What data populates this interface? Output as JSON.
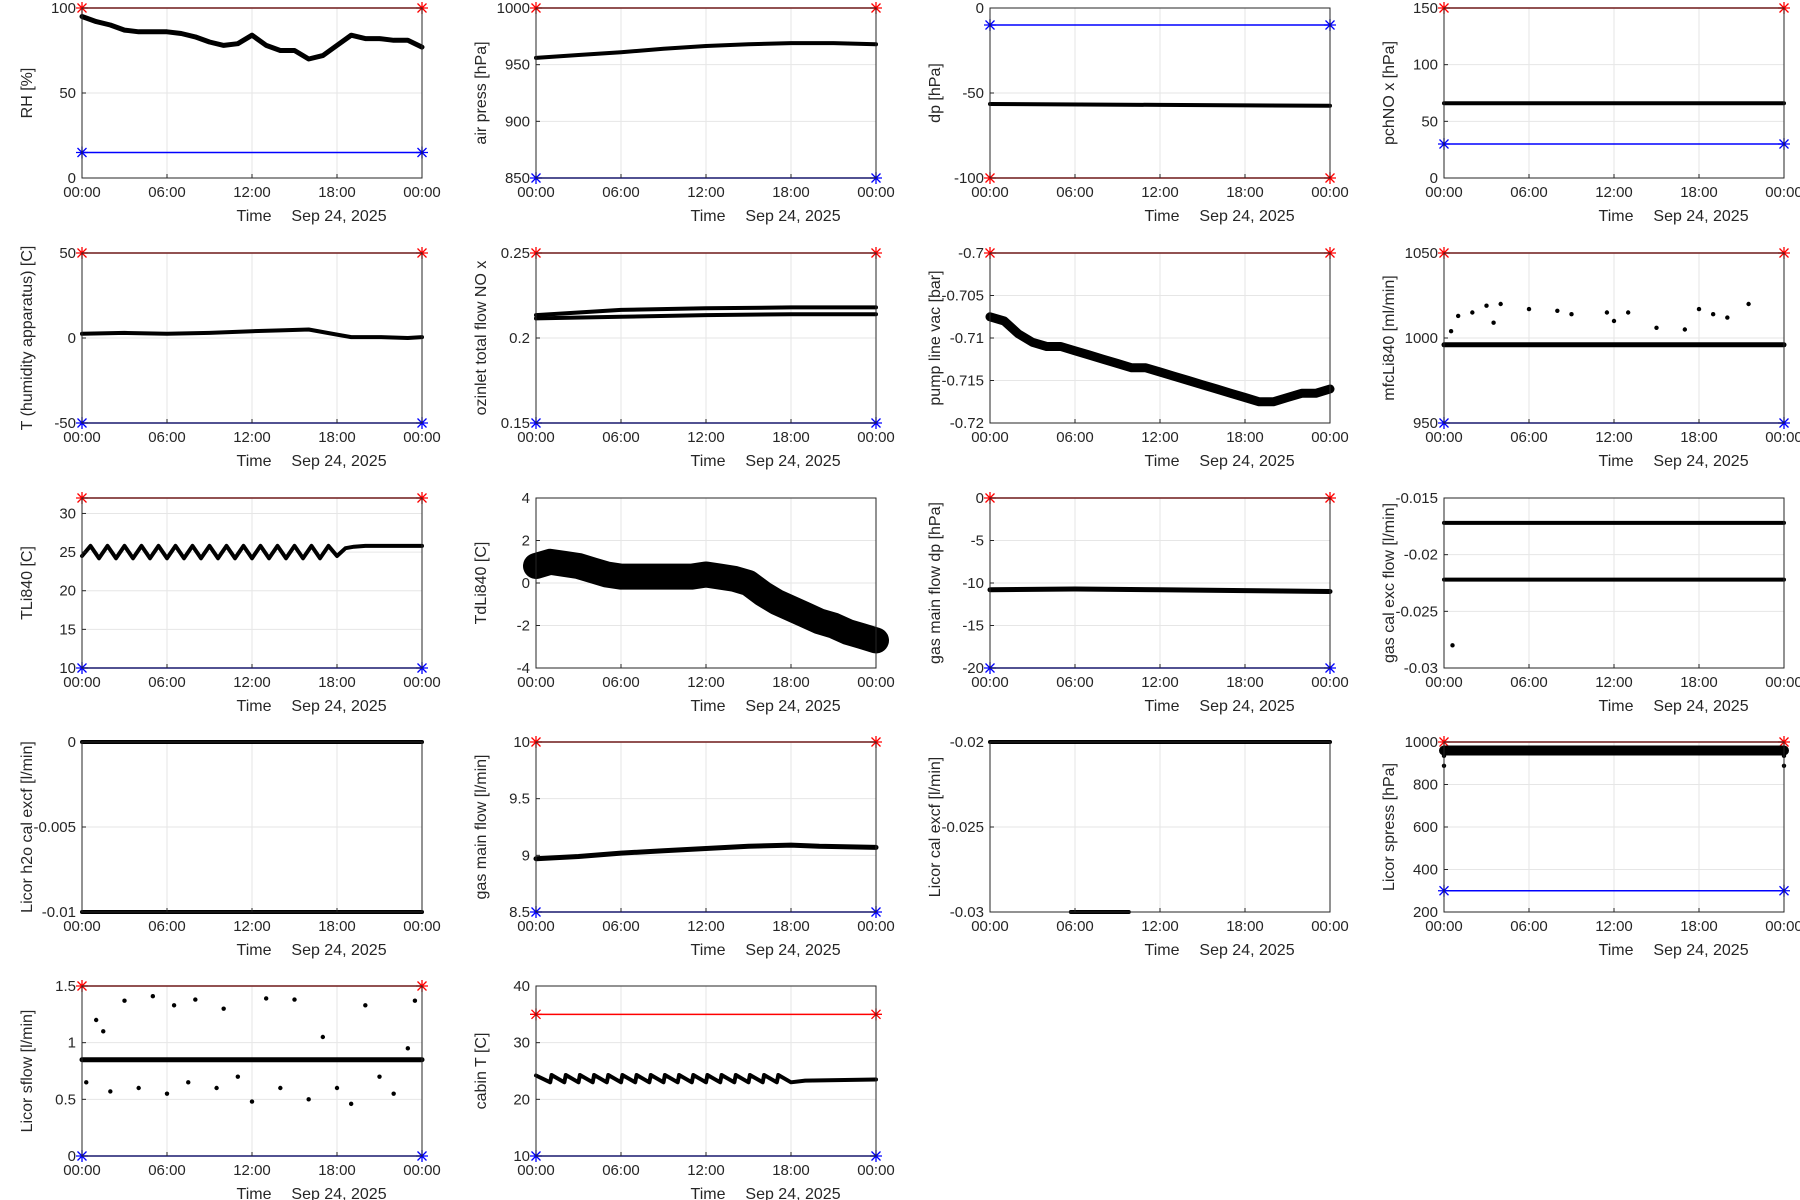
{
  "figure": {
    "x_title": "Time",
    "date_label": "Sep 24, 2025"
  },
  "colors": {
    "upper_limit": "#ff0000",
    "lower_limit": "#0000ff",
    "data": "#000000",
    "grid": "#e6e6e6",
    "axes": "#262626"
  },
  "chart_data": [
    {
      "type": "scatter",
      "ylabel": "RH [%]",
      "ylim": [
        0,
        100
      ],
      "yticks": [
        "0",
        "50",
        "100"
      ],
      "xticks": [
        "00:00",
        "06:00",
        "12:00",
        "18:00",
        "00:00"
      ],
      "upper_limit": 100,
      "lower_limit": 15,
      "series": [
        {
          "x": [
            0,
            1,
            2,
            3,
            4,
            5,
            6,
            7,
            8,
            9,
            10,
            11,
            12,
            13,
            14,
            15,
            16,
            17,
            18,
            19,
            20,
            21,
            22,
            23,
            24
          ],
          "y": [
            95,
            92,
            90,
            87,
            86,
            86,
            86,
            85,
            83,
            80,
            78,
            79,
            84,
            78,
            75,
            75,
            70,
            72,
            78,
            84,
            82,
            82,
            81,
            81,
            77
          ]
        }
      ]
    },
    {
      "type": "line",
      "ylabel": "air press [hPa]",
      "ylim": [
        850,
        1000
      ],
      "yticks": [
        "850",
        "900",
        "950",
        "1000"
      ],
      "xticks": [
        "00:00",
        "06:00",
        "12:00",
        "18:00",
        "00:00"
      ],
      "upper_limit": 1000,
      "lower_limit": 850,
      "series": [
        {
          "x": [
            0,
            3,
            6,
            9,
            12,
            15,
            18,
            21,
            24
          ],
          "y": [
            956,
            958.5,
            961,
            964,
            966.5,
            968,
            969,
            969,
            968
          ]
        }
      ]
    },
    {
      "type": "line",
      "ylabel": "dp [hPa]",
      "ylim": [
        -100,
        0
      ],
      "yticks": [
        "-100",
        "-50",
        "0"
      ],
      "xticks": [
        "00:00",
        "06:00",
        "12:00",
        "18:00",
        "00:00"
      ],
      "upper_limit": -100,
      "lower_limit": -10,
      "series": [
        {
          "x": [
            0,
            12,
            24
          ],
          "y": [
            -56.5,
            -57,
            -57.5
          ]
        }
      ]
    },
    {
      "type": "line",
      "ylabel": "pchNO x [hPa]",
      "ylim": [
        0,
        150
      ],
      "yticks": [
        "0",
        "50",
        "100",
        "150"
      ],
      "xticks": [
        "00:00",
        "06:00",
        "12:00",
        "18:00",
        "00:00"
      ],
      "upper_limit": 150,
      "lower_limit": 30,
      "series": [
        {
          "x": [
            0,
            12,
            24
          ],
          "y": [
            66,
            66,
            66
          ]
        }
      ]
    },
    {
      "type": "line",
      "ylabel": "T (humidity apparatus) [C]",
      "ylim": [
        -50,
        50
      ],
      "yticks": [
        "-50",
        "0",
        "50"
      ],
      "xticks": [
        "00:00",
        "06:00",
        "12:00",
        "18:00",
        "00:00"
      ],
      "upper_limit": 50,
      "lower_limit": -50,
      "series": [
        {
          "x": [
            0,
            3,
            6,
            9,
            12,
            14,
            16,
            18,
            19,
            21,
            23,
            24
          ],
          "y": [
            2.5,
            3,
            2.5,
            3,
            4,
            4.5,
            5,
            2,
            0.5,
            0.5,
            0,
            0.5
          ]
        }
      ]
    },
    {
      "type": "line",
      "ylabel": "ozinlet total flow NO x",
      "ylim": [
        0.15,
        0.25
      ],
      "yticks": [
        "0.15",
        "0.2",
        "0.25"
      ],
      "xticks": [
        "00:00",
        "06:00",
        "12:00",
        "18:00",
        "00:00"
      ],
      "upper_limit": 0.25,
      "lower_limit": 0.15,
      "series": [
        {
          "x": [
            0,
            6,
            12,
            18,
            24
          ],
          "y": [
            0.2135,
            0.2165,
            0.2175,
            0.218,
            0.218
          ]
        },
        {
          "x": [
            0,
            6,
            12,
            18,
            24
          ],
          "y": [
            0.2115,
            0.2125,
            0.2135,
            0.214,
            0.214
          ]
        }
      ]
    },
    {
      "type": "scatter",
      "ylabel": "pump line vac [bar]",
      "ylim": [
        -0.72,
        -0.7
      ],
      "yticks": [
        "-0.72",
        "-0.715",
        "-0.71",
        "-0.705",
        "-0.7"
      ],
      "xticks": [
        "00:00",
        "06:00",
        "12:00",
        "18:00",
        "00:00"
      ],
      "upper_limit": -0.7,
      "lower_limit": null,
      "series": [
        {
          "x": [
            0,
            1,
            2,
            3,
            4,
            5,
            6,
            7,
            8,
            9,
            10,
            11,
            12,
            13,
            14,
            15,
            16,
            17,
            18,
            19,
            20,
            21,
            22,
            23,
            24
          ],
          "y": [
            -0.7075,
            -0.708,
            -0.7095,
            -0.7105,
            -0.711,
            -0.711,
            -0.7115,
            -0.712,
            -0.7125,
            -0.713,
            -0.7135,
            -0.7135,
            -0.714,
            -0.7145,
            -0.715,
            -0.7155,
            -0.716,
            -0.7165,
            -0.717,
            -0.7175,
            -0.7175,
            -0.717,
            -0.7165,
            -0.7165,
            -0.716
          ]
        }
      ]
    },
    {
      "type": "scatter",
      "ylabel": "mfcLi840 [ml/min]",
      "ylim": [
        950,
        1050
      ],
      "yticks": [
        "950",
        "1000",
        "1050"
      ],
      "xticks": [
        "00:00",
        "06:00",
        "12:00",
        "18:00",
        "00:00"
      ],
      "upper_limit": 1050,
      "lower_limit": 950,
      "series": [
        {
          "x": [
            0,
            24
          ],
          "y": [
            996,
            996
          ]
        },
        {
          "x": [
            0.5,
            1,
            2,
            3,
            3.5,
            4,
            6,
            8,
            9,
            11.5,
            12,
            13,
            15,
            17,
            18,
            19,
            20,
            21.5
          ],
          "y": [
            1004,
            1013,
            1015,
            1019,
            1009,
            1020,
            1017,
            1016,
            1014,
            1015,
            1010,
            1015,
            1006,
            1005,
            1017,
            1014,
            1012,
            1020
          ]
        }
      ]
    },
    {
      "type": "line",
      "ylabel": "TLi840 [C]",
      "ylim": [
        10,
        32
      ],
      "yticks": [
        "10",
        "15",
        "20",
        "25",
        "30"
      ],
      "xticks": [
        "00:00",
        "06:00",
        "12:00",
        "18:00",
        "00:00"
      ],
      "upper_limit": 32,
      "lower_limit": 10,
      "series": [
        {
          "x": [
            0,
            0.6,
            1.2,
            1.8,
            2.4,
            3,
            3.6,
            4.2,
            4.8,
            5.4,
            6,
            6.6,
            7.2,
            7.8,
            8.4,
            9,
            9.6,
            10.2,
            10.8,
            11.4,
            12,
            12.6,
            13.2,
            13.8,
            14.4,
            15,
            15.6,
            16.2,
            16.8,
            17.4,
            18,
            18.6,
            19.2,
            20,
            22,
            24
          ],
          "y": [
            24.5,
            25.8,
            24.2,
            25.8,
            24.2,
            25.8,
            24.2,
            25.8,
            24.2,
            25.8,
            24.2,
            25.8,
            24.2,
            25.8,
            24.2,
            25.8,
            24.2,
            25.8,
            24.2,
            25.8,
            24.2,
            25.8,
            24.2,
            25.8,
            24.2,
            25.8,
            24.2,
            25.8,
            24.2,
            25.8,
            24.5,
            25.5,
            25.7,
            25.8,
            25.8,
            25.8
          ]
        }
      ]
    },
    {
      "type": "scatter",
      "ylabel": "TdLi840 [C]",
      "ylim": [
        -4,
        4
      ],
      "yticks": [
        "-4",
        "-2",
        "0",
        "2",
        "4"
      ],
      "xticks": [
        "00:00",
        "06:00",
        "12:00",
        "18:00",
        "00:00"
      ],
      "upper_limit": null,
      "lower_limit": null,
      "series": [
        {
          "x": [
            0,
            1,
            2,
            3,
            4,
            5,
            6,
            7,
            8,
            9,
            10,
            11,
            12,
            13,
            14,
            15,
            16,
            17,
            18,
            19,
            20,
            21,
            22,
            23,
            24
          ],
          "y": [
            0.8,
            1.0,
            0.9,
            0.8,
            0.6,
            0.4,
            0.3,
            0.3,
            0.3,
            0.3,
            0.3,
            0.3,
            0.4,
            0.3,
            0.2,
            0.0,
            -0.5,
            -0.9,
            -1.2,
            -1.5,
            -1.8,
            -2.0,
            -2.3,
            -2.5,
            -2.7
          ]
        }
      ]
    },
    {
      "type": "scatter",
      "ylabel": "gas main flow dp [hPa]",
      "ylim": [
        -20,
        0
      ],
      "yticks": [
        "-20",
        "-15",
        "-10",
        "-5",
        "0"
      ],
      "xticks": [
        "00:00",
        "06:00",
        "12:00",
        "18:00",
        "00:00"
      ],
      "upper_limit": 0,
      "lower_limit": -20,
      "series": [
        {
          "x": [
            0,
            6,
            12,
            18,
            24
          ],
          "y": [
            -10.8,
            -10.7,
            -10.8,
            -10.9,
            -11.0
          ]
        }
      ]
    },
    {
      "type": "line",
      "ylabel": "gas cal exc flow [l/min]",
      "ylim": [
        -0.03,
        -0.015
      ],
      "yticks": [
        "-0.03",
        "-0.025",
        "-0.02",
        "-0.015"
      ],
      "xticks": [
        "00:00",
        "06:00",
        "12:00",
        "18:00",
        "00:00"
      ],
      "upper_limit": null,
      "lower_limit": null,
      "series": [
        {
          "x": [
            0,
            24
          ],
          "y": [
            -0.0172,
            -0.0172
          ]
        },
        {
          "x": [
            0,
            24
          ],
          "y": [
            -0.0222,
            -0.0222
          ]
        },
        {
          "x": [
            0.6
          ],
          "y": [
            -0.028
          ]
        }
      ]
    },
    {
      "type": "line",
      "ylabel": "Licor h2o cal excf [l/min]",
      "ylim": [
        -0.01,
        0
      ],
      "yticks": [
        "-0.01",
        "-0.005",
        "0"
      ],
      "xticks": [
        "00:00",
        "06:00",
        "12:00",
        "18:00",
        "00:00"
      ],
      "upper_limit": null,
      "lower_limit": null,
      "series": [
        {
          "x": [
            0,
            24
          ],
          "y": [
            0,
            0
          ]
        },
        {
          "x": [
            0,
            24
          ],
          "y": [
            -0.01,
            -0.01
          ]
        }
      ]
    },
    {
      "type": "scatter",
      "ylabel": "gas main flow [l/min]",
      "ylim": [
        8.5,
        10
      ],
      "yticks": [
        "8.5",
        "9",
        "9.5",
        "10"
      ],
      "xticks": [
        "00:00",
        "06:00",
        "12:00",
        "18:00",
        "00:00"
      ],
      "upper_limit": 10,
      "lower_limit": 8.5,
      "series": [
        {
          "x": [
            0,
            3,
            6,
            9,
            12,
            15,
            18,
            20,
            24
          ],
          "y": [
            8.97,
            8.99,
            9.02,
            9.04,
            9.06,
            9.08,
            9.09,
            9.08,
            9.07
          ]
        }
      ]
    },
    {
      "type": "line",
      "ylabel": "Licor cal excf [l/min]",
      "ylim": [
        -0.03,
        -0.02
      ],
      "yticks": [
        "-0.03",
        "-0.025",
        "-0.02"
      ],
      "xticks": [
        "00:00",
        "06:00",
        "12:00",
        "18:00",
        "00:00"
      ],
      "upper_limit": null,
      "lower_limit": null,
      "series": [
        {
          "x": [
            0,
            24
          ],
          "y": [
            -0.02,
            -0.02
          ]
        },
        {
          "x": [
            5.7,
            9.8
          ],
          "y": [
            -0.03,
            -0.03
          ]
        }
      ]
    },
    {
      "type": "scatter",
      "ylabel": "Licor spress [hPa]",
      "ylim": [
        200,
        1000
      ],
      "yticks": [
        "200",
        "400",
        "600",
        "800",
        "1000"
      ],
      "xticks": [
        "00:00",
        "06:00",
        "12:00",
        "18:00",
        "00:00"
      ],
      "upper_limit": 1000,
      "lower_limit": 300,
      "series": [
        {
          "x": [
            0,
            24
          ],
          "y": [
            960,
            960
          ]
        },
        {
          "x": [
            0,
            24
          ],
          "y": [
            935,
            935
          ]
        },
        {
          "x": [
            0,
            24
          ],
          "y": [
            888,
            888
          ]
        }
      ]
    },
    {
      "type": "scatter",
      "ylabel": "Licor sflow [l/min]",
      "ylim": [
        0,
        1.5
      ],
      "yticks": [
        "0",
        "0.5",
        "1",
        "1.5"
      ],
      "xticks": [
        "00:00",
        "06:00",
        "12:00",
        "18:00",
        "00:00"
      ],
      "upper_limit": 1.5,
      "lower_limit": 0,
      "series": [
        {
          "x": [
            0,
            24
          ],
          "y": [
            0.85,
            0.85
          ]
        },
        {
          "x": [
            0.3,
            1,
            1.5,
            2,
            3,
            4,
            5,
            6,
            6.5,
            7.5,
            8,
            9.5,
            10,
            11,
            12,
            13,
            14,
            15,
            16,
            17,
            18,
            19,
            20,
            21,
            22,
            23,
            23.5
          ],
          "y": [
            0.65,
            1.2,
            1.1,
            0.57,
            1.37,
            0.6,
            1.41,
            0.55,
            1.33,
            0.65,
            1.38,
            0.6,
            1.3,
            0.7,
            0.48,
            1.39,
            0.6,
            1.38,
            0.5,
            1.05,
            0.6,
            0.46,
            1.33,
            0.7,
            0.55,
            0.95,
            1.37
          ]
        }
      ]
    },
    {
      "type": "line",
      "ylabel": "cabin T [C]",
      "ylim": [
        10,
        40
      ],
      "yticks": [
        "10",
        "20",
        "30",
        "40"
      ],
      "xticks": [
        "00:00",
        "06:00",
        "12:00",
        "18:00",
        "00:00"
      ],
      "upper_limit": 35,
      "lower_limit": 10,
      "series": [
        {
          "x": [
            0,
            1,
            1.1,
            2,
            2.1,
            3,
            3.1,
            4,
            4.1,
            5,
            5.1,
            6,
            6.1,
            7,
            7.1,
            8,
            8.1,
            9,
            9.1,
            10,
            10.1,
            11,
            11.1,
            12,
            12.1,
            13,
            13.1,
            14,
            14.1,
            15,
            15.1,
            16,
            16.1,
            17,
            17.1,
            18,
            19,
            24
          ],
          "y": [
            24.2,
            23,
            24.3,
            23,
            24.3,
            23,
            24.3,
            23,
            24.3,
            23,
            24.3,
            23,
            24.3,
            23,
            24.3,
            23,
            24.3,
            23,
            24.3,
            23,
            24.3,
            23,
            24.3,
            23,
            24.3,
            23,
            24.3,
            23,
            24.3,
            23,
            24.3,
            23,
            24.3,
            23,
            24.3,
            23,
            23.3,
            23.5
          ]
        }
      ]
    }
  ]
}
